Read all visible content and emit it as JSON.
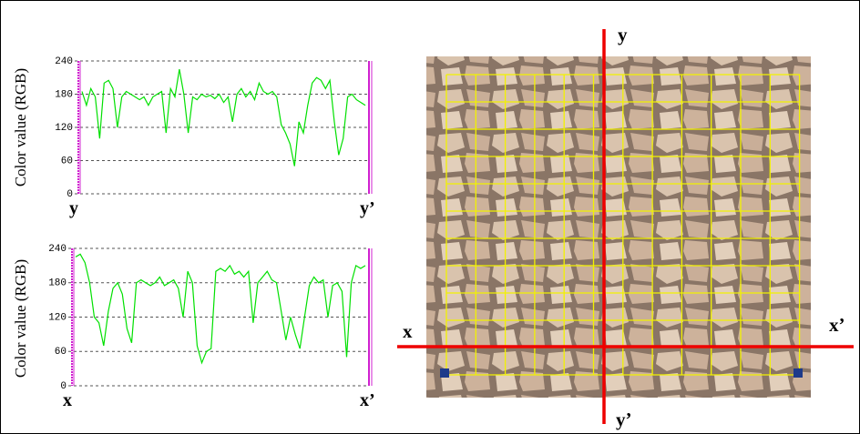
{
  "chart_data": [
    {
      "type": "line",
      "y_label": "Color value (RGB)",
      "start_label": "y",
      "end_label": "y’",
      "color": "#00e000",
      "ylim": [
        0,
        240
      ],
      "yticks": [
        0,
        60,
        120,
        180,
        240
      ],
      "grid": true,
      "values": [
        185,
        160,
        190,
        175,
        100,
        200,
        205,
        190,
        120,
        175,
        185,
        180,
        175,
        170,
        175,
        160,
        175,
        180,
        185,
        110,
        190,
        175,
        225,
        180,
        110,
        175,
        170,
        180,
        175,
        178,
        172,
        180,
        165,
        175,
        130,
        180,
        190,
        175,
        185,
        170,
        200,
        185,
        180,
        185,
        175,
        125,
        110,
        90,
        50,
        130,
        110,
        160,
        200,
        210,
        205,
        190,
        205,
        130,
        70,
        100,
        175,
        180,
        170,
        165,
        160
      ]
    },
    {
      "type": "line",
      "y_label": "Color value (RGB)",
      "start_label": "x",
      "end_label": "x’",
      "color": "#00e000",
      "ylim": [
        0,
        240
      ],
      "yticks": [
        0,
        60,
        120,
        180,
        240
      ],
      "grid": true,
      "values": [
        225,
        230,
        215,
        180,
        120,
        110,
        70,
        130,
        170,
        180,
        160,
        100,
        75,
        180,
        185,
        180,
        175,
        180,
        190,
        175,
        180,
        185,
        170,
        120,
        200,
        180,
        70,
        40,
        60,
        65,
        200,
        205,
        200,
        210,
        195,
        200,
        190,
        200,
        110,
        180,
        190,
        200,
        185,
        180,
        130,
        80,
        120,
        90,
        65,
        120,
        175,
        190,
        180,
        185,
        120,
        175,
        180,
        165,
        50,
        180,
        210,
        205,
        210
      ]
    }
  ],
  "image": {
    "top_label": "y",
    "bottom_label": "y’",
    "left_label": "x",
    "right_label": "x’"
  }
}
